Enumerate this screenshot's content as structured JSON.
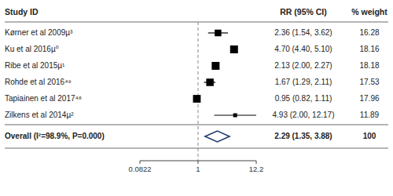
{
  "chart_data": {
    "type": "forest",
    "column_headers": [
      "Study ID",
      "RR (95% CI)",
      "% weight"
    ],
    "categories": [
      "Kørner et al 2009µ³",
      "Ku et al 2016µ⁰",
      "Ribe et al 2015µ¹",
      "Rohde et al 2016⁴⁹",
      "Tapiainen et al 2017⁴⁸",
      "Zilkens et al 2014µ²"
    ],
    "values": [
      2.36,
      4.7,
      2.13,
      1.67,
      0.95,
      4.93
    ],
    "ci_low": [
      1.54,
      4.4,
      2.0,
      1.29,
      0.82,
      2.0
    ],
    "ci_high": [
      3.62,
      5.1,
      2.27,
      2.11,
      1.11,
      12.17
    ],
    "value_labels": [
      "2.36 (1.54, 3.62)",
      "4.70 (4.40, 5.10)",
      "2.13 (2.00, 2.27)",
      "1.67 (1.29, 2.11)",
      "0.95 (0.82, 1.11)",
      "4.93 (2.00, 12.17)"
    ],
    "weights": [
      16.28,
      18.16,
      18.18,
      17.53,
      17.96,
      11.89
    ],
    "color": "black",
    "overall": {
      "label": "Overall (I²=98.9%, P=0.000)",
      "value": 2.29,
      "ci_low": 1.35,
      "ci_high": 3.88,
      "value_label": "2.29 (1.35, 3.88)",
      "weight": 100,
      "color": "#1a3a6b"
    },
    "reference_line": 1,
    "log": "x",
    "xlim": [
      0.0822,
      12.2
    ],
    "xticks": [
      0.0822,
      1,
      12.2
    ]
  }
}
